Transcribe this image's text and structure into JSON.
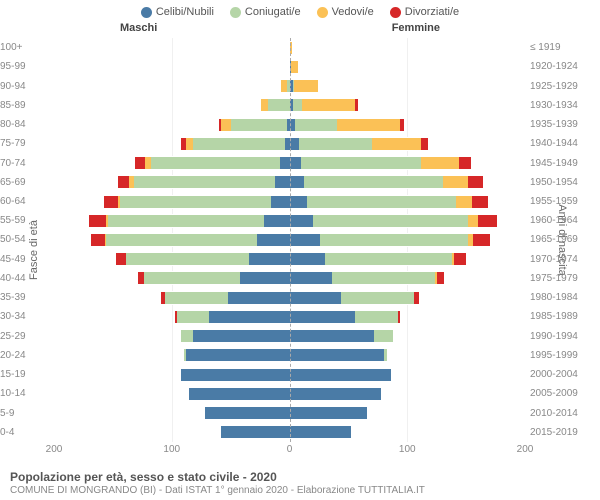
{
  "chart": {
    "type": "population_pyramid",
    "legend": [
      {
        "label": "Celibi/Nubili",
        "color": "#4a7ba6"
      },
      {
        "label": "Coniugati/e",
        "color": "#b5d5a7"
      },
      {
        "label": "Vedovi/e",
        "color": "#fbc156"
      },
      {
        "label": "Divorziati/e",
        "color": "#d62728"
      }
    ],
    "gender_left": "Maschi",
    "gender_right": "Femmine",
    "y_title_left": "Fasce di età",
    "y_title_right": "Anni di nascita",
    "x_ticks": [
      200,
      100,
      0,
      100,
      200
    ],
    "x_max": 200,
    "background_color": "#ffffff",
    "grid_color": "#f0f0f0",
    "footer_title": "Popolazione per età, sesso e stato civile - 2020",
    "footer_sub": "COMUNE DI MONGRANDO (BI) - Dati ISTAT 1° gennaio 2020 - Elaborazione TUTTITALIA.IT",
    "rows": [
      {
        "age": "100+",
        "birth": "≤ 1919",
        "m": [
          0,
          0,
          0,
          0
        ],
        "f": [
          0,
          0,
          2,
          0
        ]
      },
      {
        "age": "95-99",
        "birth": "1920-1924",
        "m": [
          0,
          0,
          0,
          0
        ],
        "f": [
          1,
          0,
          6,
          0
        ]
      },
      {
        "age": "90-94",
        "birth": "1925-1929",
        "m": [
          0,
          2,
          5,
          0
        ],
        "f": [
          3,
          1,
          20,
          0
        ]
      },
      {
        "age": "85-89",
        "birth": "1930-1934",
        "m": [
          0,
          18,
          6,
          0
        ],
        "f": [
          3,
          8,
          45,
          2
        ]
      },
      {
        "age": "80-84",
        "birth": "1935-1939",
        "m": [
          2,
          48,
          8,
          2
        ],
        "f": [
          5,
          35,
          54,
          3
        ]
      },
      {
        "age": "75-79",
        "birth": "1940-1944",
        "m": [
          4,
          78,
          6,
          4
        ],
        "f": [
          8,
          62,
          42,
          6
        ]
      },
      {
        "age": "70-74",
        "birth": "1945-1949",
        "m": [
          8,
          110,
          5,
          8
        ],
        "f": [
          10,
          102,
          32,
          10
        ]
      },
      {
        "age": "65-69",
        "birth": "1950-1954",
        "m": [
          12,
          120,
          4,
          10
        ],
        "f": [
          12,
          118,
          22,
          12
        ]
      },
      {
        "age": "60-64",
        "birth": "1955-1959",
        "m": [
          16,
          128,
          2,
          12
        ],
        "f": [
          15,
          126,
          14,
          14
        ]
      },
      {
        "age": "55-59",
        "birth": "1960-1964",
        "m": [
          22,
          132,
          2,
          14
        ],
        "f": [
          20,
          132,
          8,
          16
        ]
      },
      {
        "age": "50-54",
        "birth": "1965-1969",
        "m": [
          28,
          128,
          1,
          12
        ],
        "f": [
          26,
          126,
          4,
          14
        ]
      },
      {
        "age": "45-49",
        "birth": "1970-1974",
        "m": [
          34,
          105,
          0,
          8
        ],
        "f": [
          30,
          108,
          2,
          10
        ]
      },
      {
        "age": "40-44",
        "birth": "1975-1979",
        "m": [
          42,
          82,
          0,
          5
        ],
        "f": [
          36,
          88,
          1,
          6
        ]
      },
      {
        "age": "35-39",
        "birth": "1980-1984",
        "m": [
          52,
          54,
          0,
          3
        ],
        "f": [
          44,
          62,
          0,
          4
        ]
      },
      {
        "age": "30-34",
        "birth": "1985-1989",
        "m": [
          68,
          28,
          0,
          1
        ],
        "f": [
          56,
          36,
          0,
          2
        ]
      },
      {
        "age": "25-29",
        "birth": "1990-1994",
        "m": [
          82,
          10,
          0,
          0
        ],
        "f": [
          72,
          16,
          0,
          0
        ]
      },
      {
        "age": "20-24",
        "birth": "1995-1999",
        "m": [
          88,
          2,
          0,
          0
        ],
        "f": [
          80,
          3,
          0,
          0
        ]
      },
      {
        "age": "15-19",
        "birth": "2000-2004",
        "m": [
          92,
          0,
          0,
          0
        ],
        "f": [
          86,
          0,
          0,
          0
        ]
      },
      {
        "age": "10-14",
        "birth": "2005-2009",
        "m": [
          85,
          0,
          0,
          0
        ],
        "f": [
          78,
          0,
          0,
          0
        ]
      },
      {
        "age": "5-9",
        "birth": "2010-2014",
        "m": [
          72,
          0,
          0,
          0
        ],
        "f": [
          66,
          0,
          0,
          0
        ]
      },
      {
        "age": "0-4",
        "birth": "2015-2019",
        "m": [
          58,
          0,
          0,
          0
        ],
        "f": [
          52,
          0,
          0,
          0
        ]
      }
    ]
  }
}
